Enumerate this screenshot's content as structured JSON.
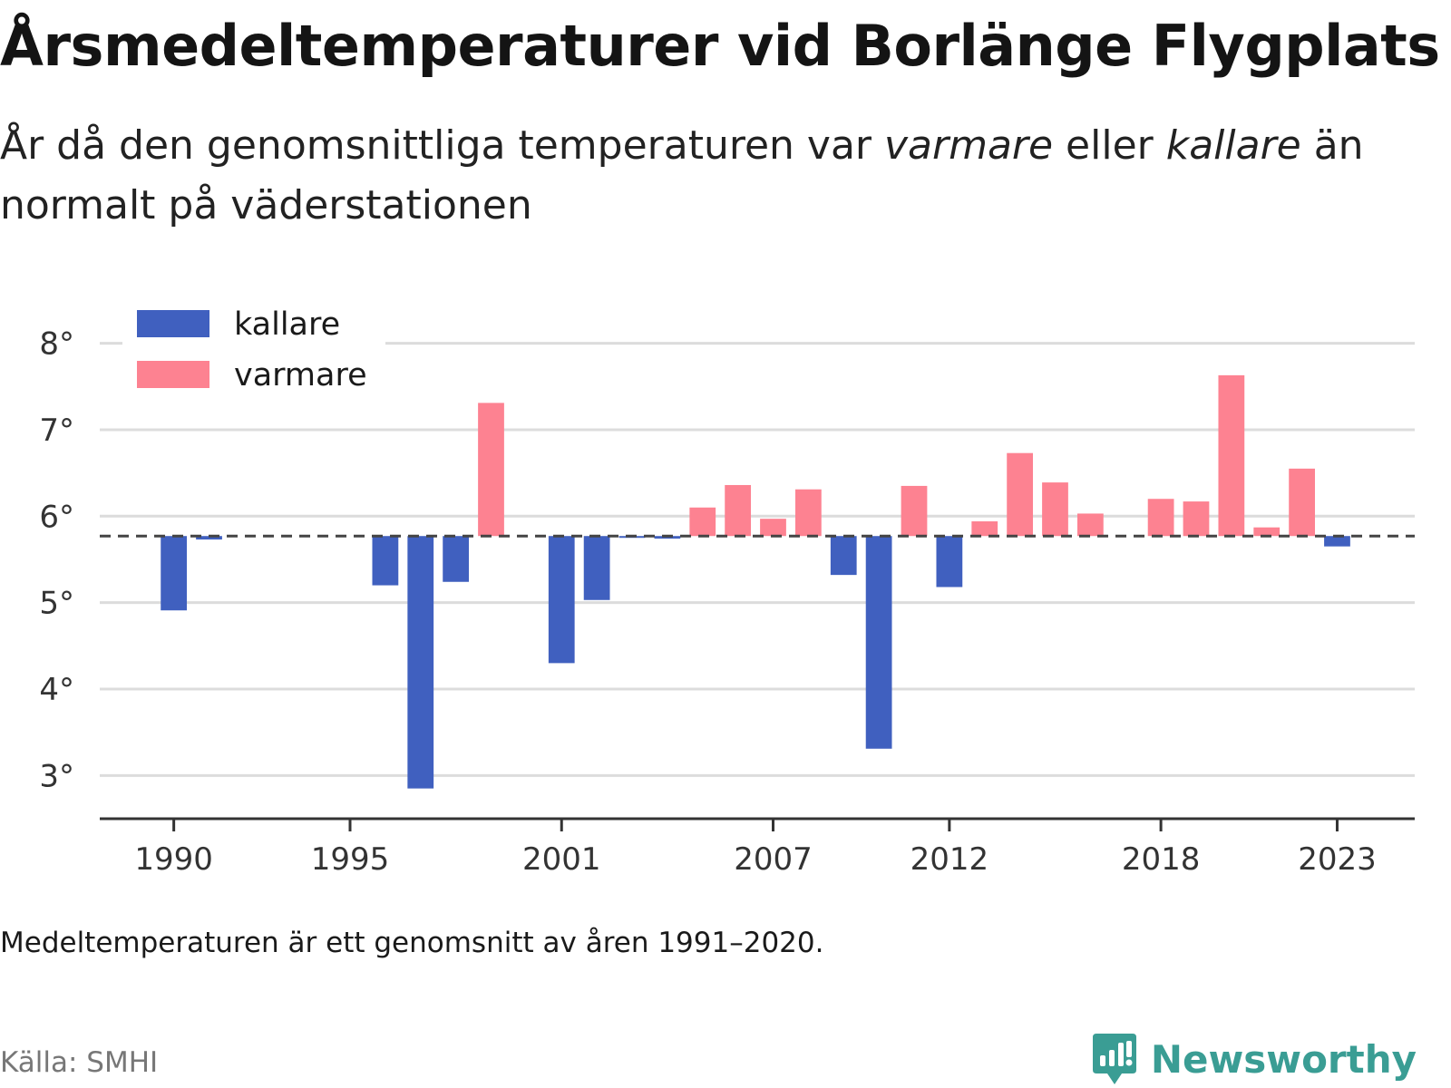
{
  "header": {
    "title": "Årsmedeltemperaturer vid Borlänge Flygplats",
    "subtitle_a": "År då den genomsnittliga temperaturen var ",
    "subtitle_warm": "varmare",
    "subtitle_b": " eller ",
    "subtitle_cold": "kallare",
    "subtitle_c": " än normalt på väderstationen"
  },
  "footer": {
    "note": "Medeltemperaturen är ett genomsnitt av åren 1991–2020.",
    "source": "Källa: SMHI",
    "brand": "Newsworthy"
  },
  "colors": {
    "kallare": "#4060bf",
    "varmare": "#fd8291",
    "grid": "#dcdcdc",
    "axis": "#333333",
    "baseline": "#444444",
    "brand": "#3a9d94"
  },
  "chart_data": {
    "type": "bar",
    "title": "Årsmedeltemperaturer vid Borlänge Flygplats",
    "baseline": 5.77,
    "ylim": [
      2.5,
      8.3
    ],
    "yticks": [
      3,
      4,
      5,
      6,
      7,
      8
    ],
    "ytick_suffix": "°",
    "xlim": [
      1987.9,
      2025.2
    ],
    "xticks": [
      1990,
      1995,
      2001,
      2007,
      2012,
      2018,
      2023
    ],
    "legend": {
      "position": "top-left",
      "items": [
        {
          "key": "kallare",
          "label": "kallare"
        },
        {
          "key": "varmare",
          "label": "varmare"
        }
      ]
    },
    "series": [
      {
        "name": "kallare",
        "values": [
          [
            1990,
            4.91
          ],
          [
            1991,
            5.73
          ],
          [
            1996,
            5.2
          ],
          [
            1997,
            2.85
          ],
          [
            1998,
            5.24
          ],
          [
            2001,
            4.3
          ],
          [
            2002,
            5.03
          ],
          [
            2003,
            5.75
          ],
          [
            2004,
            5.74
          ],
          [
            2009,
            5.32
          ],
          [
            2010,
            3.31
          ],
          [
            2012,
            5.18
          ],
          [
            2023,
            5.65
          ]
        ]
      },
      {
        "name": "varmare",
        "values": [
          [
            1999,
            7.31
          ],
          [
            2005,
            6.1
          ],
          [
            2006,
            6.36
          ],
          [
            2007,
            5.97
          ],
          [
            2008,
            6.31
          ],
          [
            2011,
            6.35
          ],
          [
            2013,
            5.94
          ],
          [
            2014,
            6.73
          ],
          [
            2015,
            6.39
          ],
          [
            2016,
            6.03
          ],
          [
            2018,
            6.2
          ],
          [
            2019,
            6.17
          ],
          [
            2020,
            7.63
          ],
          [
            2021,
            5.87
          ],
          [
            2022,
            6.55
          ]
        ]
      }
    ]
  }
}
